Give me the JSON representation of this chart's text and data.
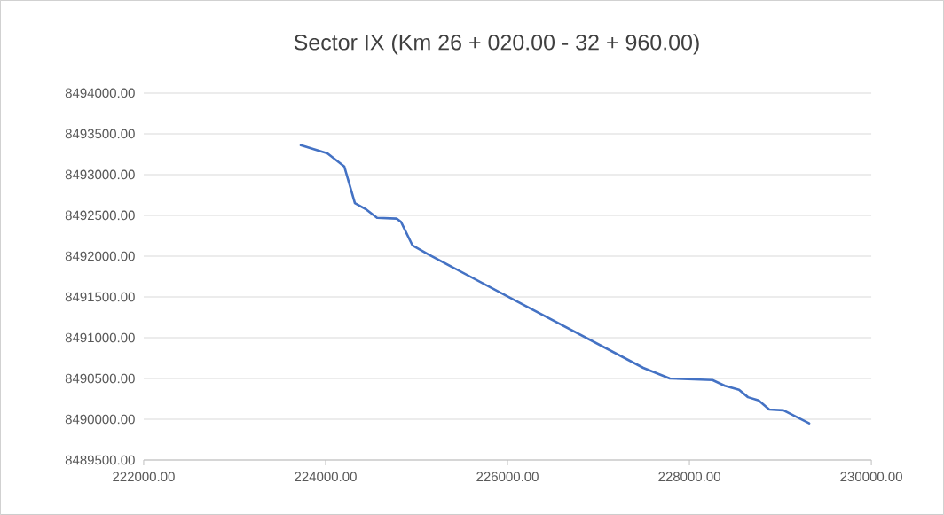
{
  "chart_data": {
    "type": "line",
    "title": "Sector IX (Km 26 + 020.00 - 32 + 960.00)",
    "x": [
      223727,
      224020,
      224205,
      224322,
      224449,
      224566,
      224780,
      224829,
      224956,
      225132,
      226078,
      227493,
      227785,
      228254,
      228390,
      228546,
      228644,
      228761,
      228878,
      229034,
      229317
    ],
    "series": [
      {
        "color": "#4472c4",
        "values": [
          8493360,
          8493260,
          8493100,
          8492650,
          8492570,
          8492470,
          8492460,
          8492420,
          8492130,
          8492020,
          8491460,
          8490630,
          8490500,
          8490480,
          8490410,
          8490360,
          8490270,
          8490230,
          8490120,
          8490110,
          8489950
        ]
      }
    ],
    "xlim": [
      222000,
      230000
    ],
    "xticks": [
      {
        "value": 222000,
        "label": "222000.00"
      },
      {
        "value": 224000,
        "label": "224000.00"
      },
      {
        "value": 226000,
        "label": "226000.00"
      },
      {
        "value": 228000,
        "label": "228000.00"
      },
      {
        "value": 230000,
        "label": "230000.00"
      }
    ],
    "ylim": [
      8489500,
      8494000
    ],
    "yticks": [
      {
        "value": 8489500,
        "label": "8489500.00"
      },
      {
        "value": 8490000,
        "label": "8490000.00"
      },
      {
        "value": 8490500,
        "label": "8490500.00"
      },
      {
        "value": 8491000,
        "label": "8491000.00"
      },
      {
        "value": 8491500,
        "label": "8491500.00"
      },
      {
        "value": 8492000,
        "label": "8492000.00"
      },
      {
        "value": 8492500,
        "label": "8492500.00"
      },
      {
        "value": 8493000,
        "label": "8493000.00"
      },
      {
        "value": 8493500,
        "label": "8493500.00"
      },
      {
        "value": 8494000,
        "label": "8494000.00"
      }
    ],
    "grid": "y",
    "marker": "none",
    "line_style": "solid"
  }
}
